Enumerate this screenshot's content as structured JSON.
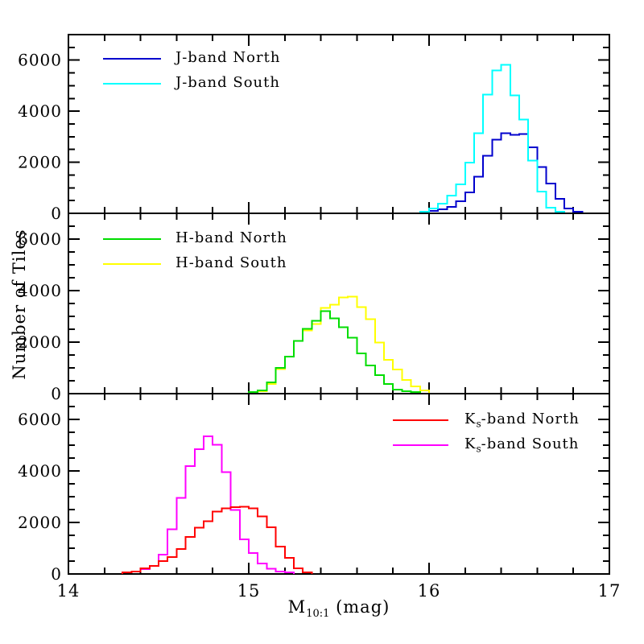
{
  "figure": {
    "background": "#ffffff",
    "axis_color": "#000000",
    "x_axis": {
      "title_pre": "M",
      "title_sub": "10:1",
      "title_post": " (mag)",
      "min": 14,
      "max": 17,
      "tick_values": [
        14,
        15,
        16,
        17
      ],
      "tick_labels": [
        "14",
        "15",
        "16",
        "17"
      ],
      "minor_tick_step": 0.2
    },
    "y_axis": {
      "title": "Number of Tiles",
      "min": 0,
      "max": 7000,
      "tick_values": [
        0,
        2000,
        4000,
        6000
      ],
      "tick_labels": [
        "0",
        "2000",
        "4000",
        "6000"
      ],
      "minor_tick_step": 500
    }
  },
  "chart_data": [
    {
      "type": "bar",
      "subtype": "step-histogram",
      "panel": "top",
      "xlim": [
        14,
        17
      ],
      "ylim": [
        0,
        7000
      ],
      "xlabel": "M10:1 (mag)",
      "ylabel": "Number of Tiles",
      "yticks": [
        0,
        2000,
        4000,
        6000
      ],
      "grid": false,
      "legend": {
        "side": "left",
        "entries": [
          {
            "pre": "J",
            "sub": "",
            "post": "-band North",
            "color": "#0000CD"
          },
          {
            "pre": "J",
            "sub": "",
            "post": "-band South",
            "color": "#00FFFF"
          }
        ]
      },
      "draw_order": [
        0,
        1
      ],
      "series": [
        {
          "name": "J-band North",
          "color": "#0000CD",
          "bin_start": 15.95,
          "bin_width": 0.05,
          "values": [
            60,
            90,
            160,
            250,
            470,
            820,
            1440,
            2260,
            2890,
            3140,
            3080,
            3110,
            2580,
            1820,
            1160,
            565,
            190,
            60
          ]
        },
        {
          "name": "J-band South",
          "color": "#00FFFF",
          "bin_start": 15.95,
          "bin_width": 0.05,
          "values": [
            60,
            190,
            380,
            690,
            1130,
            1980,
            3140,
            4650,
            5590,
            5810,
            4620,
            3670,
            2070,
            850,
            220,
            60
          ]
        }
      ]
    },
    {
      "type": "bar",
      "subtype": "step-histogram",
      "panel": "middle",
      "xlim": [
        14,
        17
      ],
      "ylim": [
        0,
        7000
      ],
      "xlabel": "M10:1 (mag)",
      "ylabel": "Number of Tiles",
      "yticks": [
        0,
        2000,
        4000,
        6000
      ],
      "grid": false,
      "legend": {
        "side": "left",
        "entries": [
          {
            "pre": "H",
            "sub": "",
            "post": "-band North",
            "color": "#00DD00"
          },
          {
            "pre": "H",
            "sub": "",
            "post": "-band South",
            "color": "#FFFF00"
          }
        ]
      },
      "draw_order": [
        1,
        0
      ],
      "series": [
        {
          "name": "H-band North",
          "color": "#00DD00",
          "bin_start": 15.0,
          "bin_width": 0.05,
          "values": [
            60,
            130,
            440,
            1000,
            1440,
            2040,
            2510,
            2830,
            3200,
            2920,
            2580,
            2170,
            1570,
            1100,
            720,
            380,
            160,
            90,
            60
          ]
        },
        {
          "name": "H-band South",
          "color": "#FFFF00",
          "bin_start": 15.0,
          "bin_width": 0.05,
          "values": [
            30,
            90,
            380,
            950,
            1440,
            2040,
            2450,
            2700,
            3330,
            3460,
            3730,
            3770,
            3360,
            2890,
            1980,
            1320,
            940,
            530,
            280,
            130
          ]
        }
      ]
    },
    {
      "type": "bar",
      "subtype": "step-histogram",
      "panel": "bottom",
      "xlim": [
        14,
        17
      ],
      "ylim": [
        0,
        7000
      ],
      "xlabel": "M10:1 (mag)",
      "ylabel": "Number of Tiles",
      "yticks": [
        0,
        2000,
        4000,
        6000
      ],
      "grid": false,
      "legend": {
        "side": "right",
        "entries": [
          {
            "pre": "K",
            "sub": "s",
            "post": "-band North",
            "color": "#FF0000"
          },
          {
            "pre": "K",
            "sub": "s",
            "post": "-band South",
            "color": "#FF00FF"
          }
        ]
      },
      "draw_order": [
        1,
        0
      ],
      "series": [
        {
          "name": "Ks-band North",
          "color": "#FF0000",
          "bin_start": 14.3,
          "bin_width": 0.05,
          "values": [
            60,
            90,
            220,
            310,
            500,
            660,
            970,
            1440,
            1790,
            2040,
            2420,
            2540,
            2600,
            2610,
            2540,
            2230,
            1820,
            1070,
            630,
            220,
            60
          ]
        },
        {
          "name": "Ks-band South",
          "color": "#FF00FF",
          "bin_start": 14.3,
          "bin_width": 0.05,
          "values": [
            60,
            90,
            190,
            310,
            750,
            1730,
            2950,
            4180,
            4840,
            5340,
            5020,
            3960,
            2480,
            1350,
            820,
            410,
            200,
            90,
            60
          ]
        }
      ]
    }
  ]
}
